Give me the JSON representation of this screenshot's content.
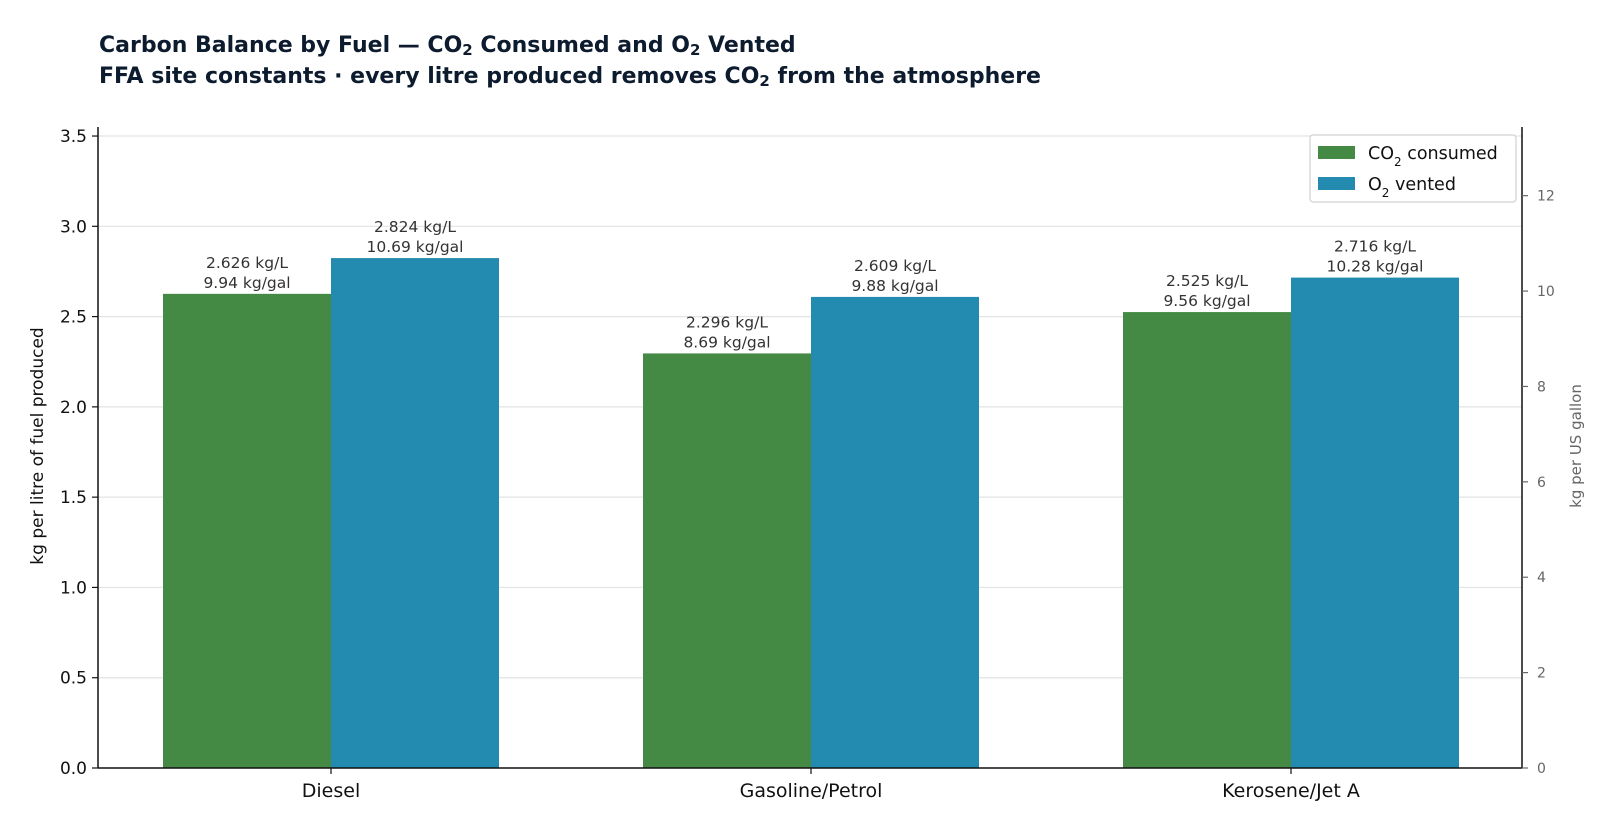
{
  "chart_data": {
    "type": "bar",
    "title_line1": {
      "parts": [
        {
          "text": "Carbon Balance by Fuel — CO",
          "sub": false
        },
        {
          "text": "2",
          "sub": true
        },
        {
          "text": " Consumed and O",
          "sub": false
        },
        {
          "text": "2",
          "sub": true
        },
        {
          "text": " Vented",
          "sub": false
        }
      ]
    },
    "title_line2": {
      "parts": [
        {
          "text": "FFA site constants · every litre produced removes CO",
          "sub": false
        },
        {
          "text": "2",
          "sub": true
        },
        {
          "text": " from the atmosphere",
          "sub": false
        }
      ]
    },
    "categories": [
      "Diesel",
      "Gasoline/Petrol",
      "Kerosene/Jet A"
    ],
    "series": [
      {
        "name_parts": [
          {
            "text": "CO",
            "sub": false
          },
          {
            "text": "2",
            "sub": true
          },
          {
            "text": " consumed",
            "sub": false
          }
        ],
        "color": "#448a44",
        "values": [
          2.626,
          2.296,
          2.525
        ],
        "labels_l": [
          "2.626 kg/L",
          "2.296 kg/L",
          "2.525 kg/L"
        ],
        "labels_gal": [
          "9.94 kg/gal",
          "8.69 kg/gal",
          "9.56 kg/gal"
        ]
      },
      {
        "name_parts": [
          {
            "text": "O",
            "sub": false
          },
          {
            "text": "2",
            "sub": true
          },
          {
            "text": " vented",
            "sub": false
          }
        ],
        "color": "#238bb0",
        "values": [
          2.824,
          2.609,
          2.716
        ],
        "labels_l": [
          "2.824 kg/L",
          "2.609 kg/L",
          "2.716 kg/L"
        ],
        "labels_gal": [
          "10.69 kg/gal",
          "9.88 kg/gal",
          "10.28 kg/gal"
        ]
      }
    ],
    "y_left": {
      "label": "kg per litre of fuel produced",
      "lim": [
        0,
        3.55
      ],
      "ticks": [
        "0.0",
        "0.5",
        "1.0",
        "1.5",
        "2.0",
        "2.5",
        "3.0",
        "3.5"
      ]
    },
    "y_right": {
      "label": "kg per US gallon",
      "lim": [
        0,
        13.44
      ],
      "ticks": [
        "0",
        "2",
        "4",
        "6",
        "8",
        "10",
        "12"
      ]
    },
    "grid": true,
    "legend_position": "top-right"
  }
}
